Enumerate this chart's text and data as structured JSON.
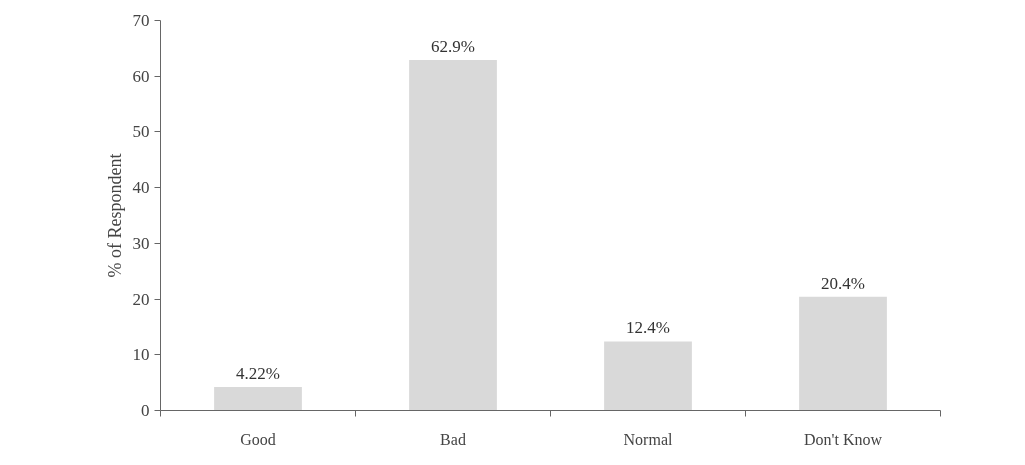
{
  "chart_data": {
    "type": "bar",
    "ylabel": "% of Respondent",
    "categories": [
      "Good",
      "Bad",
      "Normal",
      "Don't Know"
    ],
    "values": [
      4.22,
      62.9,
      12.4,
      20.4
    ],
    "value_labels": [
      "4.22%",
      "62.9%",
      "12.4%",
      "20.4%"
    ],
    "color": "#d9d9d9",
    "ylim": [
      0,
      70
    ],
    "yticks": [
      0,
      10,
      20,
      30,
      40,
      50,
      60,
      70
    ],
    "grid": false
  }
}
